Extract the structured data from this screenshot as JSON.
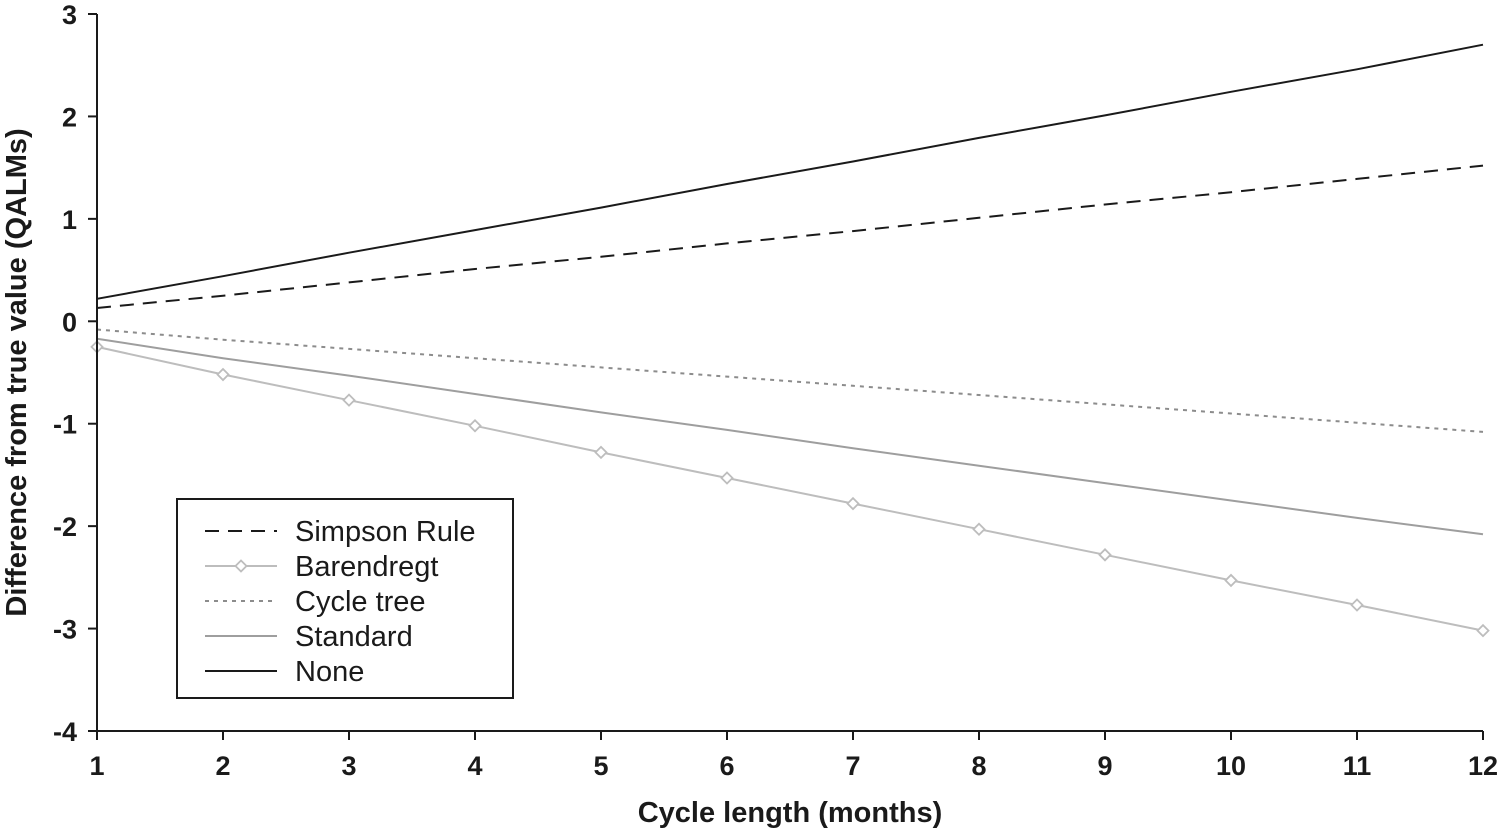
{
  "chart_data": {
    "type": "line",
    "title": "",
    "xlabel": "Cycle length (months)",
    "ylabel": "Difference from true value (QALMs)",
    "xlim": [
      1,
      12
    ],
    "ylim": [
      -4,
      3
    ],
    "x_ticks": [
      1,
      2,
      3,
      4,
      5,
      6,
      7,
      8,
      9,
      10,
      11,
      12
    ],
    "y_ticks": [
      3,
      2,
      1,
      0,
      -1,
      -2,
      -3,
      -4
    ],
    "grid": false,
    "legend_position": "bottom-left",
    "x": [
      1,
      2,
      3,
      4,
      5,
      6,
      7,
      8,
      9,
      10,
      11,
      12
    ],
    "series": [
      {
        "name": "Simpson Rule",
        "style": "dashed",
        "color": "#1a1a1a",
        "marker": "none",
        "values": [
          0.13,
          0.25,
          0.38,
          0.51,
          0.63,
          0.76,
          0.88,
          1.01,
          1.14,
          1.26,
          1.39,
          1.52
        ]
      },
      {
        "name": "Barendregt",
        "style": "solid",
        "color": "#bdbdbd",
        "marker": "diamond",
        "values": [
          -0.25,
          -0.52,
          -0.77,
          -1.02,
          -1.28,
          -1.53,
          -1.78,
          -2.03,
          -2.28,
          -2.53,
          -2.77,
          -3.02
        ]
      },
      {
        "name": "Cycle tree",
        "style": "dotted",
        "color": "#8c8c8c",
        "marker": "none",
        "values": [
          -0.08,
          -0.18,
          -0.27,
          -0.36,
          -0.45,
          -0.54,
          -0.63,
          -0.72,
          -0.81,
          -0.9,
          -0.99,
          -1.08
        ]
      },
      {
        "name": "Standard",
        "style": "solid",
        "color": "#9e9e9e",
        "marker": "none",
        "values": [
          -0.17,
          -0.36,
          -0.53,
          -0.71,
          -0.89,
          -1.06,
          -1.24,
          -1.41,
          -1.58,
          -1.75,
          -1.92,
          -2.08
        ]
      },
      {
        "name": "None",
        "style": "solid",
        "color": "#1a1a1a",
        "marker": "none",
        "values": [
          0.22,
          0.44,
          0.67,
          0.89,
          1.11,
          1.34,
          1.56,
          1.79,
          2.01,
          2.24,
          2.46,
          2.7
        ]
      }
    ]
  }
}
